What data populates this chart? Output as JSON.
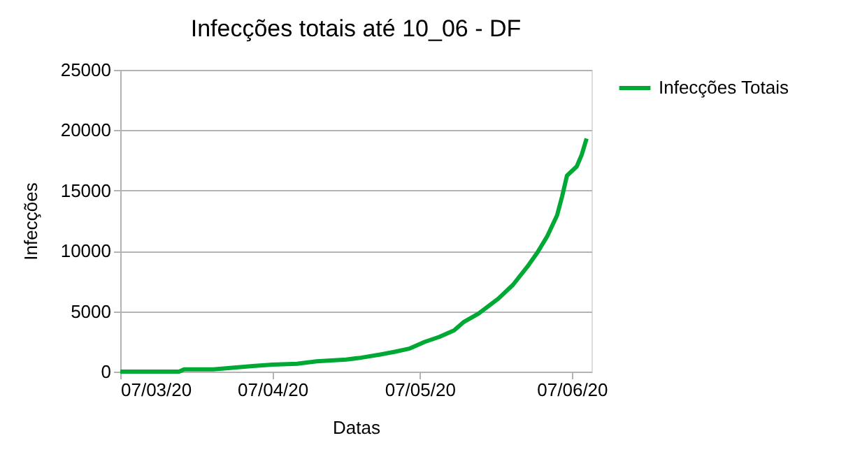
{
  "chart_data": {
    "type": "line",
    "title": "Infecções totais até 10_06 - DF",
    "xlabel": "Datas",
    "ylabel": "Infecções",
    "x": [
      "2020-03-07",
      "2020-03-19",
      "2020-03-20",
      "2020-03-26",
      "2020-04-03",
      "2020-04-07",
      "2020-04-12",
      "2020-04-16",
      "2020-04-22",
      "2020-04-25",
      "2020-04-29",
      "2020-05-02",
      "2020-05-05",
      "2020-05-08",
      "2020-05-11",
      "2020-05-14",
      "2020-05-16",
      "2020-05-19",
      "2020-05-23",
      "2020-05-26",
      "2020-05-29",
      "2020-05-31",
      "2020-06-02",
      "2020-06-04",
      "2020-06-05",
      "2020-06-06",
      "2020-06-08",
      "2020-06-09",
      "2020-06-10"
    ],
    "series": [
      {
        "name": "Infecções Totais",
        "color": "#00a933",
        "values": [
          0,
          0,
          190,
          190,
          460,
          580,
          650,
          850,
          1000,
          1150,
          1420,
          1650,
          1920,
          2460,
          2880,
          3420,
          4120,
          4810,
          6040,
          7190,
          8730,
          9880,
          11230,
          12960,
          14500,
          16230,
          17000,
          17960,
          19310
        ]
      }
    ],
    "xlim": [
      "2020-03-07",
      "2020-06-11"
    ],
    "xticks": [
      {
        "value": "2020-03-07",
        "label": "07/03/20"
      },
      {
        "value": "2020-04-07",
        "label": "07/04/20"
      },
      {
        "value": "2020-05-07",
        "label": "07/05/20"
      },
      {
        "value": "2020-06-07",
        "label": "07/06/20"
      }
    ],
    "ylim": [
      0,
      25000
    ],
    "yticks": [
      0,
      5000,
      10000,
      15000,
      20000,
      25000
    ],
    "grid": "y",
    "legend": "right",
    "marker": "none",
    "line_style": "solid"
  }
}
